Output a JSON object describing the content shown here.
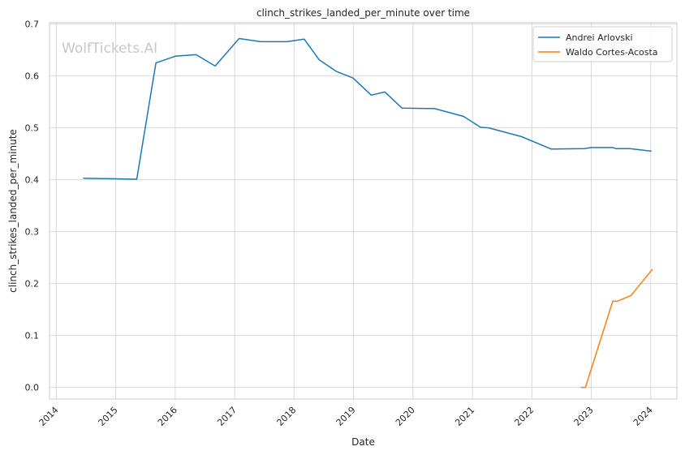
{
  "chart_data": {
    "type": "line",
    "title": "clinch_strikes_landed_per_minute over time",
    "xlabel": "Date",
    "ylabel": "clinch_strikes_landed_per_minute",
    "watermark": "WolfTickets.AI",
    "xlim": [
      "2013-11-20",
      "2024-06-10"
    ],
    "ylim": [
      -0.0225,
      0.7025
    ],
    "x_ticks": [
      {
        "label": "2014",
        "date": "2014-01-01"
      },
      {
        "label": "2015",
        "date": "2015-01-01"
      },
      {
        "label": "2016",
        "date": "2016-01-01"
      },
      {
        "label": "2017",
        "date": "2017-01-01"
      },
      {
        "label": "2018",
        "date": "2018-01-01"
      },
      {
        "label": "2019",
        "date": "2019-01-01"
      },
      {
        "label": "2020",
        "date": "2020-01-01"
      },
      {
        "label": "2021",
        "date": "2021-01-01"
      },
      {
        "label": "2022",
        "date": "2022-01-01"
      },
      {
        "label": "2023",
        "date": "2023-01-01"
      },
      {
        "label": "2024",
        "date": "2024-01-01"
      }
    ],
    "y_ticks": [
      {
        "label": "0.0",
        "value": 0.0
      },
      {
        "label": "0.1",
        "value": 0.1
      },
      {
        "label": "0.2",
        "value": 0.2
      },
      {
        "label": "0.3",
        "value": 0.3
      },
      {
        "label": "0.4",
        "value": 0.4
      },
      {
        "label": "0.5",
        "value": 0.5
      },
      {
        "label": "0.6",
        "value": 0.6
      },
      {
        "label": "0.7",
        "value": 0.7
      }
    ],
    "grid": true,
    "legend": "top-right",
    "series": [
      {
        "name": "Andrei Arlovski",
        "color": "#1f77b4",
        "points": [
          [
            "2014-06-15",
            0.403
          ],
          [
            "2015-05-10",
            0.401
          ],
          [
            "2015-09-05",
            0.625
          ],
          [
            "2016-01-02",
            0.638
          ],
          [
            "2016-05-08",
            0.641
          ],
          [
            "2016-09-03",
            0.619
          ],
          [
            "2017-01-28",
            0.672
          ],
          [
            "2017-06-10",
            0.666
          ],
          [
            "2017-11-18",
            0.666
          ],
          [
            "2018-03-04",
            0.671
          ],
          [
            "2018-06-04",
            0.631
          ],
          [
            "2018-09-15",
            0.609
          ],
          [
            "2018-12-29",
            0.596
          ],
          [
            "2019-04-20",
            0.563
          ],
          [
            "2019-07-13",
            0.569
          ],
          [
            "2019-10-26",
            0.538
          ],
          [
            "2020-05-13",
            0.537
          ],
          [
            "2020-11-07",
            0.522
          ],
          [
            "2021-02-20",
            0.501
          ],
          [
            "2021-04-10",
            0.5
          ],
          [
            "2021-10-30",
            0.483
          ],
          [
            "2022-04-30",
            0.459
          ],
          [
            "2022-11-19",
            0.46
          ],
          [
            "2023-01-01",
            0.462
          ],
          [
            "2023-05-13",
            0.462
          ],
          [
            "2023-06-01",
            0.46
          ],
          [
            "2023-08-26",
            0.46
          ],
          [
            "2024-01-06",
            0.455
          ]
        ]
      },
      {
        "name": "Waldo Cortes-Acosta",
        "color": "#ff7f0e",
        "points": [
          [
            "2022-10-29",
            0.0
          ],
          [
            "2022-11-26",
            0.0
          ],
          [
            "2023-05-13",
            0.166
          ],
          [
            "2023-06-10",
            0.166
          ],
          [
            "2023-09-02",
            0.177
          ],
          [
            "2024-01-13",
            0.228
          ]
        ]
      }
    ]
  }
}
